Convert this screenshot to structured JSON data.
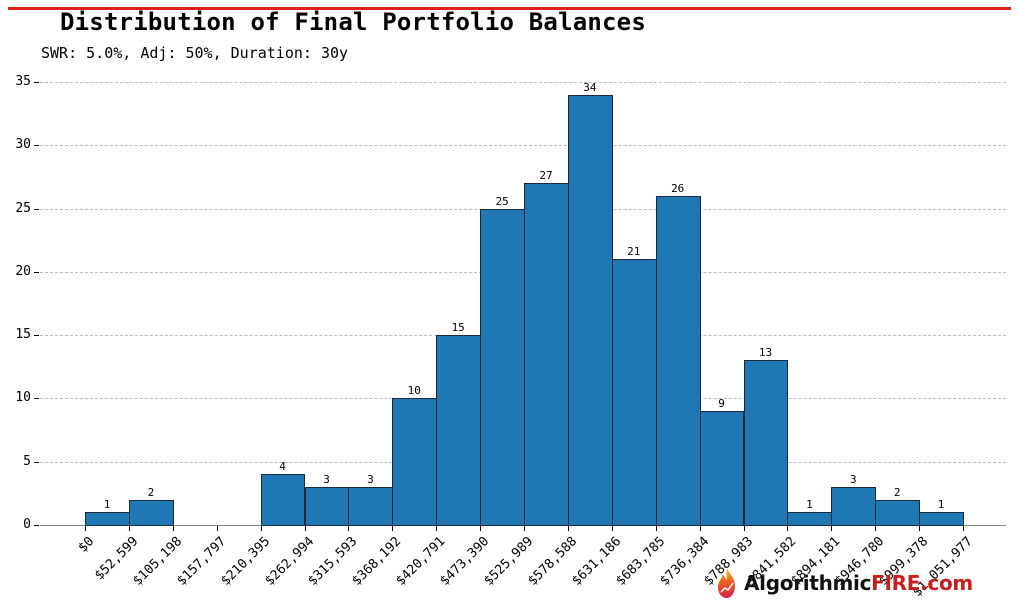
{
  "header": {
    "title": "Distribution of Final Portfolio Balances",
    "subtitle": "SWR: 5.0%, Adj: 50%, Duration: 30y",
    "accent_color": "#e0201b"
  },
  "watermark": {
    "text_dark": "Algorithmic",
    "text_red": "FIRE.com",
    "icon": "flame-chart-icon"
  },
  "chart_data": {
    "type": "bar",
    "title": "Distribution of Final Portfolio Balances",
    "subtitle": "SWR: 5.0%, Adj: 50%, Duration: 30y",
    "xlabel": "",
    "ylabel": "",
    "ylim": [
      0,
      35
    ],
    "yticks": [
      0,
      5,
      10,
      15,
      20,
      25,
      30,
      35
    ],
    "grid": "y, dashed",
    "legend": "none",
    "bar_color": "#1f77b4",
    "bin_edges_labels": [
      "$0",
      "$52,599",
      "$105,198",
      "$157,797",
      "$210,395",
      "$262,994",
      "$315,593",
      "$368,192",
      "$420,791",
      "$473,390",
      "$525,989",
      "$578,588",
      "$631,186",
      "$683,785",
      "$736,384",
      "$788,983",
      "$841,582",
      "$894,181",
      "$946,780",
      "$999,378",
      "$1,051,977"
    ],
    "categories": [
      "$0–$52,599",
      "$52,599–$105,198",
      "$105,198–$157,797",
      "$157,797–$210,395",
      "$210,395–$262,994",
      "$262,994–$315,593",
      "$315,593–$368,192",
      "$368,192–$420,791",
      "$420,791–$473,390",
      "$473,390–$525,989",
      "$525,989–$578,588",
      "$578,588–$631,186",
      "$631,186–$683,785",
      "$683,785–$736,384",
      "$736,384–$788,983",
      "$788,983–$841,582",
      "$841,582–$894,181",
      "$894,181–$946,780",
      "$946,780–$999,378",
      "$999,378–$1,051,977"
    ],
    "values": [
      1,
      2,
      0,
      0,
      4,
      3,
      3,
      10,
      15,
      25,
      27,
      34,
      21,
      26,
      9,
      13,
      1,
      3,
      2,
      1
    ],
    "bar_labels": [
      "1",
      "2",
      "",
      "",
      "4",
      "3",
      "3",
      "10",
      "15",
      "25",
      "27",
      "34",
      "21",
      "26",
      "9",
      "13",
      "1",
      "3",
      "2",
      "1"
    ]
  }
}
